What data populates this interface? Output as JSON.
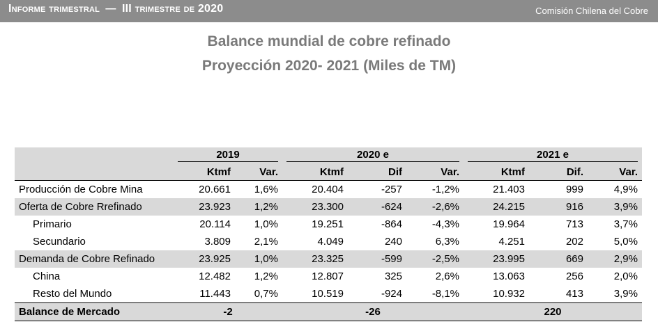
{
  "header": {
    "report": "Informe trimestral",
    "dash": "—",
    "period": "III trimestre de 2020",
    "org": "Comisión Chilena del Cobre"
  },
  "title": {
    "line1": "Balance mundial de cobre refinado",
    "line2": "Proyección 2020- 2021 (Miles de TM)"
  },
  "table": {
    "years": [
      "2019",
      "2020 e",
      "2021 e"
    ],
    "subheaders": [
      "Ktmf",
      "Var.",
      "Ktmf",
      "Dif",
      "Var.",
      "Ktmf",
      "Dif.",
      "Var."
    ],
    "rows": [
      {
        "label": "Producción de Cobre Mina",
        "values": [
          "20.661",
          "1,6%",
          "20.404",
          "-257",
          "-1,2%",
          "21.403",
          "999",
          "4,9%"
        ]
      },
      {
        "label": "Oferta de Cobre Rrefinado",
        "values": [
          "23.923",
          "1,2%",
          "23.300",
          "-624",
          "-2,6%",
          "24.215",
          "916",
          "3,9%"
        ]
      },
      {
        "label": "Primario",
        "values": [
          "20.114",
          "1,0%",
          "19.251",
          "-864",
          "-4,3%",
          "19.964",
          "713",
          "3,7%"
        ]
      },
      {
        "label": "Secundario",
        "values": [
          "3.809",
          "2,1%",
          "4.049",
          "240",
          "6,3%",
          "4.251",
          "202",
          "5,0%"
        ]
      },
      {
        "label": "Demanda de Cobre Refinado",
        "values": [
          "23.925",
          "1,0%",
          "23.325",
          "-599",
          "-2,5%",
          "23.995",
          "669",
          "2,9%"
        ]
      },
      {
        "label": "China",
        "values": [
          "12.482",
          "1,2%",
          "12.807",
          "325",
          "2,6%",
          "13.063",
          "256",
          "2,0%"
        ]
      },
      {
        "label": "Resto del Mundo",
        "values": [
          "11.443",
          "0,7%",
          "10.519",
          "-924",
          "-8,1%",
          "10.932",
          "413",
          "3,9%"
        ]
      }
    ],
    "balance": {
      "label": "Balance de Mercado",
      "values": [
        "-2",
        "-26",
        "220"
      ]
    }
  }
}
